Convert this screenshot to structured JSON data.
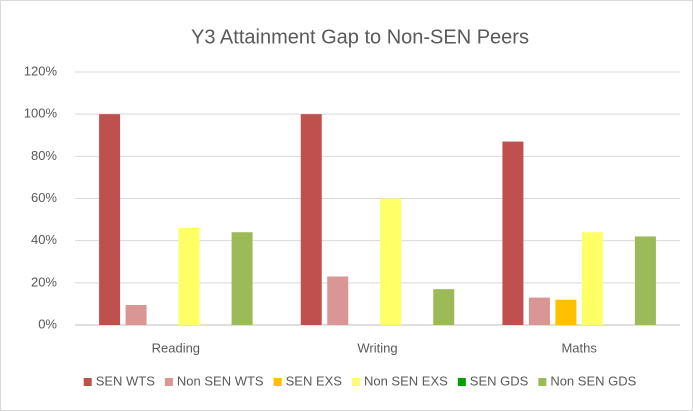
{
  "chart_data": {
    "type": "bar",
    "title": "Y3 Attainment Gap to Non-SEN Peers",
    "categories": [
      "Reading",
      "Writing",
      "Maths"
    ],
    "series": [
      {
        "name": "SEN WTS",
        "color": "#c0504d",
        "values": [
          100,
          100,
          87
        ]
      },
      {
        "name": "Non SEN WTS",
        "color": "#d99694",
        "values": [
          9.5,
          23,
          13
        ]
      },
      {
        "name": "SEN EXS",
        "color": "#ffc000",
        "values": [
          0,
          0,
          12
        ]
      },
      {
        "name": "Non SEN EXS",
        "color": "#ffff66",
        "values": [
          46,
          60,
          44
        ]
      },
      {
        "name": "SEN GDS",
        "color": "#00a000",
        "values": [
          0,
          0,
          0
        ]
      },
      {
        "name": "Non SEN GDS",
        "color": "#9bbb59",
        "values": [
          44,
          17,
          42
        ]
      }
    ],
    "ylim": [
      0,
      120
    ],
    "yticks": [
      {
        "value": 0,
        "label": "0%"
      },
      {
        "value": 20,
        "label": "20%"
      },
      {
        "value": 40,
        "label": "40%"
      },
      {
        "value": 60,
        "label": "60%"
      },
      {
        "value": 80,
        "label": "80%"
      },
      {
        "value": 100,
        "label": "100%"
      },
      {
        "value": 120,
        "label": "120%"
      }
    ],
    "grid": true,
    "legend": "bottom"
  }
}
